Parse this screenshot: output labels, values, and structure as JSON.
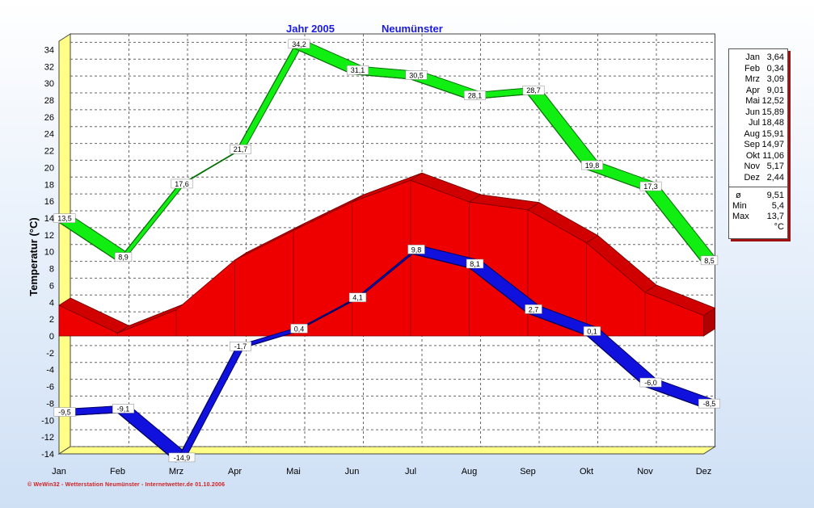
{
  "title": {
    "year": "Jahr  2005",
    "station": "Neumünster"
  },
  "footer": "© WeWin32 - Wetterstation Neumünster - Internetwetter.de  01.10.2006",
  "colors": {
    "max_band": "#11ee11",
    "mean_area": "#ee0000",
    "min_band": "#1111dd",
    "axis_wall": "#ffff88",
    "title": "#1a1ae6"
  },
  "stats": {
    "months": [
      {
        "label": "Jan",
        "value": "3,64"
      },
      {
        "label": "Feb",
        "value": "0,34"
      },
      {
        "label": "Mrz",
        "value": "3,09"
      },
      {
        "label": "Apr",
        "value": "9,01"
      },
      {
        "label": "Mai",
        "value": "12,52"
      },
      {
        "label": "Jun",
        "value": "15,89"
      },
      {
        "label": "Jul",
        "value": "18,48"
      },
      {
        "label": "Aug",
        "value": "15,91"
      },
      {
        "label": "Sep",
        "value": "14,97"
      },
      {
        "label": "Okt",
        "value": "11,06"
      },
      {
        "label": "Nov",
        "value": "5,17"
      },
      {
        "label": "Dez",
        "value": "2,44"
      }
    ],
    "summary": [
      {
        "label": "ø",
        "value": "9,51"
      },
      {
        "label": "Min",
        "value": "5,4"
      },
      {
        "label": "Max",
        "value": "13,7"
      },
      {
        "label": "",
        "value": "°C"
      }
    ]
  },
  "chart_data": {
    "type": "area",
    "title": "Jahr 2005  Neumünster",
    "xlabel": "",
    "ylabel": "Temperatur  (°C)",
    "ylim": [
      -14,
      35
    ],
    "yticks": [
      -14,
      -12,
      -10,
      -8,
      -6,
      -4,
      -2,
      0,
      2,
      4,
      6,
      8,
      10,
      12,
      14,
      16,
      18,
      20,
      22,
      24,
      26,
      28,
      30,
      32,
      34
    ],
    "grid": true,
    "legend": "none",
    "categories": [
      "Jan",
      "Feb",
      "Mrz",
      "Apr",
      "Mai",
      "Jun",
      "Jul",
      "Aug",
      "Sep",
      "Okt",
      "Nov",
      "Dez"
    ],
    "series": [
      {
        "values": [
          13.5,
          8.9,
          17.6,
          21.7,
          34.2,
          31.1,
          30.5,
          28.1,
          28.7,
          19.8,
          17.3,
          8.5
        ],
        "labels": [
          "13,5",
          "8,9",
          "17,6",
          "21,7",
          "34,2",
          "31,1",
          "30,5",
          "28,1",
          "28,7",
          "19,8",
          "17,3",
          "8,5"
        ]
      },
      {
        "values": [
          3.64,
          0.34,
          3.09,
          9.01,
          12.52,
          15.89,
          18.48,
          15.91,
          14.97,
          11.06,
          5.17,
          2.44
        ]
      },
      {
        "values": [
          -9.5,
          -9.1,
          -14.9,
          -1.7,
          0.4,
          4.1,
          9.8,
          8.1,
          2.7,
          0.1,
          -6.0,
          -8.5
        ],
        "labels": [
          "-9,5",
          "-9,1",
          "-14,9",
          "-1,7",
          "0,4",
          "4,1",
          "9,8",
          "8,1",
          "2,7",
          "0,1",
          "-6,0",
          "-8,5"
        ]
      }
    ]
  }
}
